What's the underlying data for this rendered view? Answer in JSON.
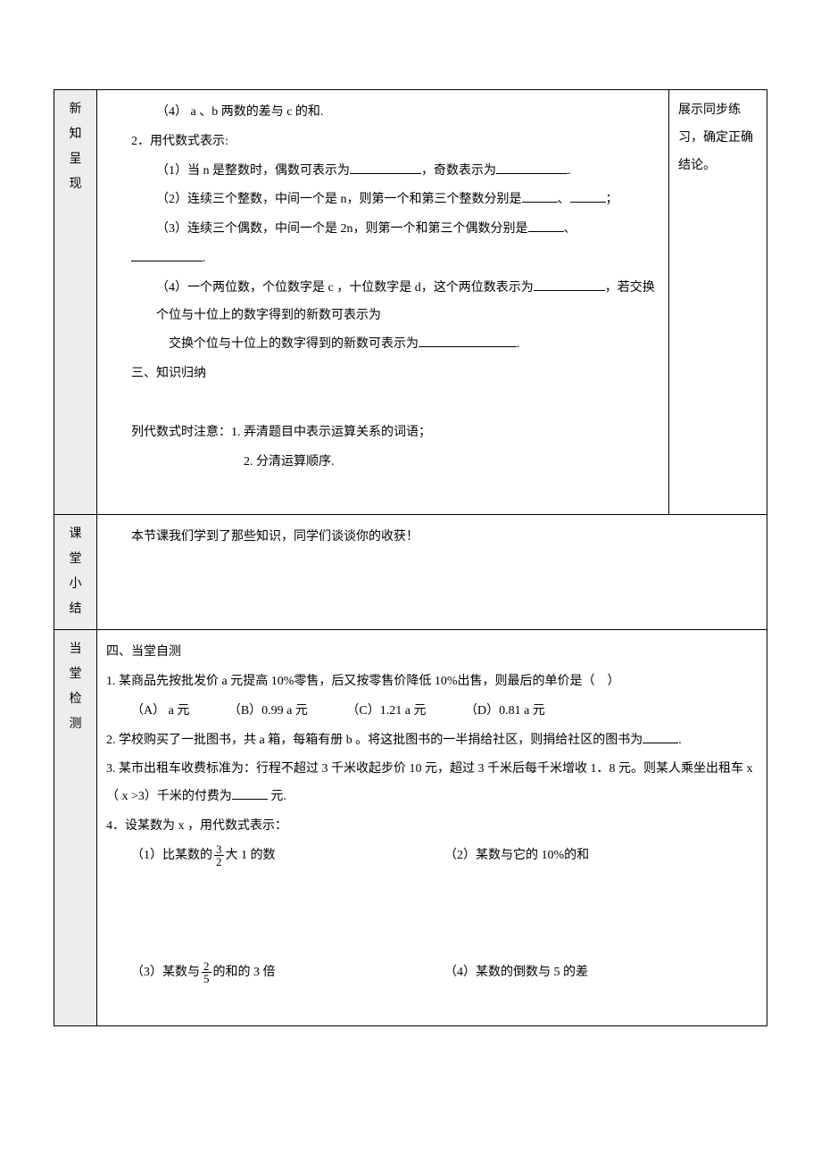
{
  "row1": {
    "label": "新知呈现",
    "side": "展示同步练习，确定正确结论。",
    "q1_4": "（4） a 、b 两数的差与 c 的和.",
    "q2_title": "2．用代数式表示:",
    "q2_1_a": "（1）当 n 是整数时，偶数可表示为",
    "q2_1_b": "，奇数表示为",
    "q2_1_c": ".",
    "q2_2_a": "（2）连续三个整数，中间一个是 n，则第一个和第三个整数分别是",
    "q2_2_b": "、",
    "q2_2_c": "；",
    "q2_3_a": "（3）连续三个偶数，中间一个是 2n，则第一个和第三个偶数分别是",
    "q2_3_b": "、",
    "q2_3_c": ".",
    "q2_4_a": "（4）一个两位数，个位数字是 c ，十位数字是 d，这个两位数表示为",
    "q2_4_b": "，若交换个位与十位上的数字得到的新数可表示为",
    "q2_4_c": ".",
    "sec3_title": "三、知识归纳",
    "note1": "列代数式时注意：1. 弄清题目中表示运算关系的词语；",
    "note2": "2. 分清运算顺序."
  },
  "row2": {
    "label": "课堂小结",
    "content": "本节课我们学到了那些知识，同学们谈谈你的收获！"
  },
  "row3": {
    "label": "当堂检测",
    "sec4_title": "四、当堂自测",
    "q1": "1. 某商品先按批发价 a 元提高 10%零售，后又按零售价降低 10%出售，则最后的单价是（　）",
    "q1_a": "（A） a 元",
    "q1_b": "（B）0.99 a 元",
    "q1_c": "（C）1.21 a 元",
    "q1_d": "（D）0.81 a 元",
    "q2_a": "2. 学校购买了一批图书，共 a 箱，每箱有册 b 。将这批图书的一半捐给社区，则捐给社区的图书为",
    "q2_b": ".",
    "q3_a": "3. 某市出租车收费标准为：行程不超过 3 千米收起步价 10 元，超过 3 千米后每千米增收 1．8 元。则某人乘坐出租车 x （ x >3）千米的付费为",
    "q3_b": " 元.",
    "q4_title": "4．设某数为 x ，用代数式表示：",
    "q4_1_a": "（1）比某数的",
    "q4_1_num": "3",
    "q4_1_den": "2",
    "q4_1_b": "大 1 的数",
    "q4_2": "（2）某数与它的 10%的和",
    "q4_3_a": "（3）某数与",
    "q4_3_num": "2",
    "q4_3_den": "5",
    "q4_3_b": "的和的 3 倍",
    "q4_4": "（4）某数的倒数与 5 的差"
  }
}
